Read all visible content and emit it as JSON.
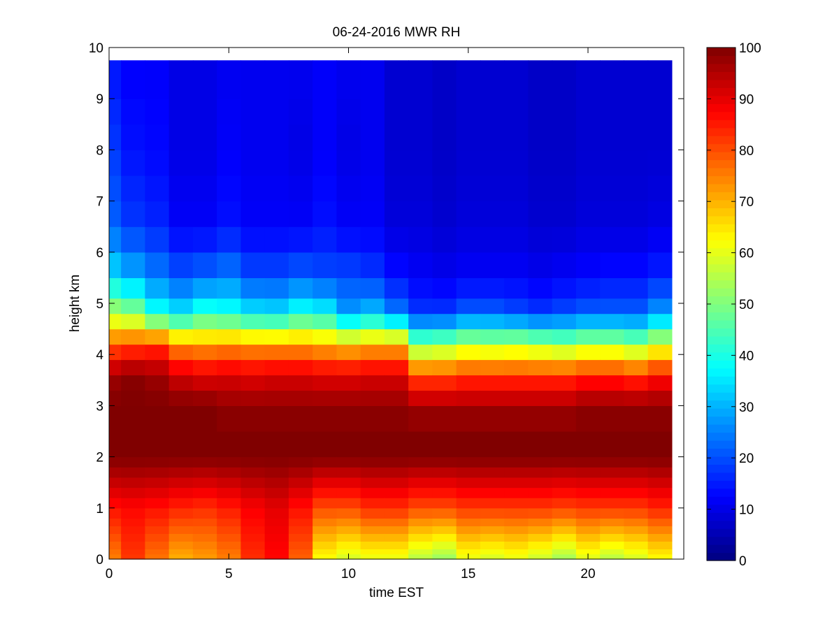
{
  "chart_data": {
    "type": "heatmap",
    "title": "06-24-2016 MWR RH",
    "xlabel": "time EST",
    "ylabel": "height km",
    "xlim": [
      0,
      24
    ],
    "ylim": [
      0,
      10
    ],
    "xticks": [
      0,
      5,
      10,
      15,
      20
    ],
    "yticks": [
      0,
      1,
      2,
      3,
      4,
      5,
      6,
      7,
      8,
      9,
      10
    ],
    "x_edges": [
      0,
      24
    ],
    "data_x_range": [
      0,
      23.5
    ],
    "data_y_range": [
      0,
      9.75
    ],
    "colorbar": {
      "colormap": "jet",
      "range": [
        0,
        100
      ],
      "ticks": [
        0,
        10,
        20,
        30,
        40,
        50,
        60,
        70,
        80,
        90,
        100
      ]
    },
    "time_hours": [
      0.5,
      1.5,
      2.5,
      3.5,
      4.5,
      5.5,
      6.5,
      7.5,
      8.5,
      9.5,
      10.5,
      11.5,
      12.5,
      13.5,
      14.5,
      15.5,
      16.5,
      17.5,
      18.5,
      19.5,
      20.5,
      21.5,
      22.5,
      23.5
    ],
    "profile_heights_km": [
      0,
      0.1,
      0.2,
      0.35,
      0.5,
      0.65,
      0.8,
      1.0,
      1.2,
      1.4,
      1.6,
      1.8,
      2.0,
      2.5,
      3.0,
      3.3,
      3.6,
      3.9,
      4.2,
      4.5,
      4.8,
      5.1,
      5.5,
      6.0,
      6.5,
      7.0,
      7.5,
      8.0,
      8.5,
      9.0,
      9.75
    ],
    "rh_percent_key_levels": {
      "heights_km": [
        0,
        1.0,
        2.0,
        2.5,
        3.0,
        3.6,
        4.2,
        4.8,
        5.5,
        6.5,
        8.0,
        9.75
      ],
      "rows": [
        [
          75,
          86,
          100,
          100,
          100,
          97,
          78,
          55,
          35,
          22,
          18,
          14
        ],
        [
          82,
          87,
          100,
          100,
          100,
          99,
          80,
          52,
          30,
          18,
          14,
          12
        ],
        [
          76,
          86,
          100,
          100,
          100,
          97,
          82,
          40,
          25,
          16,
          13,
          12
        ],
        [
          70,
          84,
          100,
          100,
          100,
          92,
          73,
          36,
          21,
          12,
          10,
          10
        ],
        [
          72,
          83,
          100,
          100,
          100,
          90,
          72,
          42,
          23,
          12,
          10,
          10
        ],
        [
          75,
          85,
          100,
          100,
          98,
          91,
          73,
          40,
          25,
          14,
          12,
          11
        ],
        [
          83,
          88,
          100,
          100,
          98,
          90,
          72,
          36,
          20,
          12,
          11,
          11
        ],
        [
          87,
          90,
          100,
          100,
          98,
          91,
          72,
          35,
          20,
          12,
          11,
          11
        ],
        [
          78,
          86,
          100,
          100,
          98,
          91,
          72,
          40,
          22,
          12,
          10,
          11
        ],
        [
          62,
          80,
          100,
          100,
          98,
          90,
          70,
          38,
          20,
          14,
          12,
          12
        ],
        [
          58,
          80,
          100,
          100,
          98,
          90,
          68,
          28,
          20,
          12,
          10,
          11
        ],
        [
          60,
          83,
          100,
          100,
          98,
          91,
          70,
          32,
          18,
          12,
          11,
          11
        ],
        [
          60,
          83,
          100,
          100,
          98,
          91,
          70,
          25,
          14,
          9,
          8,
          8
        ],
        [
          55,
          80,
          100,
          100,
          96,
          80,
          50,
          18,
          12,
          9,
          8,
          8
        ],
        [
          52,
          80,
          100,
          100,
          96,
          80,
          52,
          18,
          11,
          8,
          7,
          7
        ],
        [
          60,
          82,
          100,
          100,
          96,
          82,
          56,
          22,
          12,
          9,
          8,
          8
        ],
        [
          58,
          82,
          100,
          100,
          96,
          82,
          55,
          22,
          12,
          9,
          8,
          8
        ],
        [
          60,
          82,
          100,
          100,
          96,
          82,
          56,
          20,
          12,
          9,
          8,
          8
        ],
        [
          57,
          82,
          100,
          100,
          96,
          82,
          54,
          18,
          11,
          8,
          7,
          7
        ],
        [
          53,
          81,
          100,
          100,
          96,
          82,
          52,
          20,
          12,
          8,
          7,
          7
        ],
        [
          59,
          82,
          100,
          100,
          98,
          84,
          55,
          22,
          13,
          9,
          8,
          8
        ],
        [
          55,
          82,
          100,
          100,
          98,
          84,
          55,
          22,
          14,
          9,
          8,
          8
        ],
        [
          58,
          82,
          100,
          100,
          98,
          82,
          52,
          22,
          14,
          9,
          8,
          8
        ],
        [
          62,
          84,
          100,
          100,
          98,
          86,
          58,
          28,
          16,
          10,
          8,
          8
        ]
      ]
    }
  }
}
